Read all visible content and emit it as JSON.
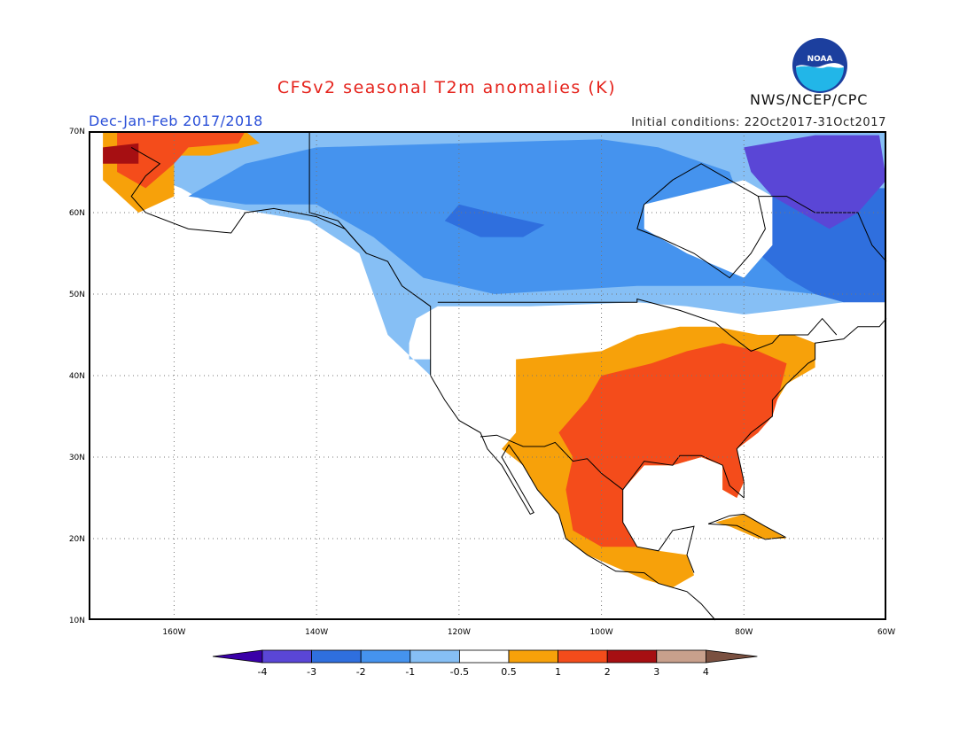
{
  "title": "CFSv2 seasonal T2m anomalies (K)",
  "season_label": "Dec-Jan-Feb 2017/2018",
  "initial_conditions": "Initial conditions: 22Oct2017-31Oct2017",
  "agency_label": "NWS/NCEP/CPC",
  "logo_text": "NOAA",
  "map": {
    "lon_range": [
      -172,
      -60
    ],
    "lat_range": [
      10,
      70
    ],
    "lat_ticks": [
      "10N",
      "20N",
      "30N",
      "40N",
      "50N",
      "60N",
      "70N"
    ],
    "lon_ticks": [
      "160W",
      "140W",
      "120W",
      "100W",
      "80W",
      "60W"
    ],
    "grid": "dotted"
  },
  "colorbar": {
    "labels": [
      "-4",
      "-3",
      "-2",
      "-1",
      "-0.5",
      "0.5",
      "1",
      "2",
      "3",
      "4"
    ],
    "colors": [
      "#3a00a8",
      "#5a46d6",
      "#2f6fde",
      "#4593ee",
      "#86bff5",
      "#ffffff",
      "#f7a10a",
      "#f44c1b",
      "#a60f12",
      "#c8a08c",
      "#7a5040"
    ]
  }
}
